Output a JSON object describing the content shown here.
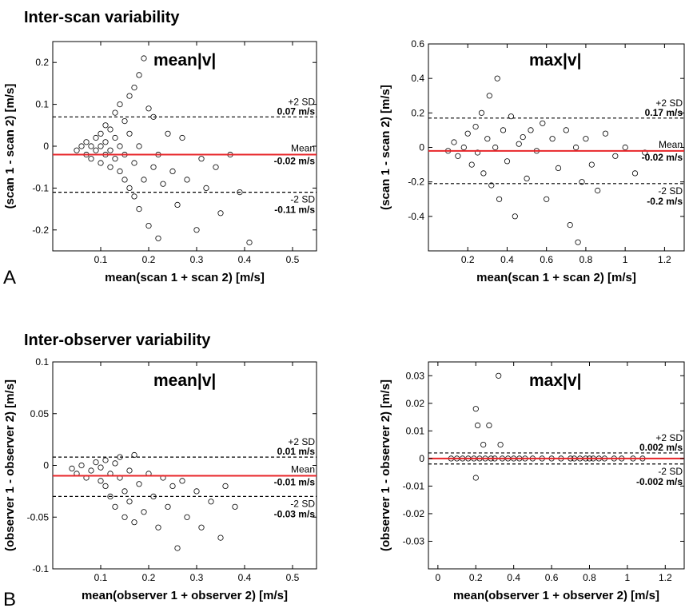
{
  "figure": {
    "section_a_title": "Inter-scan variability",
    "section_b_title": "Inter-observer variability",
    "panel_a_letter": "A",
    "panel_b_letter": "B"
  },
  "colors": {
    "mean_line": "#e8262a",
    "sd_line": "#000000",
    "marker": "#000000"
  },
  "chart_data": [
    {
      "type": "scatter",
      "title": "mean|v|",
      "xlabel": "mean(scan 1 + scan 2) [m/s]",
      "ylabel": "(scan 1 - scan 2) [m/s]",
      "xlim": [
        0,
        0.55
      ],
      "ylim": [
        -0.25,
        0.25
      ],
      "xticks": [
        0.1,
        0.2,
        0.3,
        0.4,
        0.5
      ],
      "xtick_labels": [
        "0.1",
        "0.2",
        "0.3",
        "0.4",
        "0.5"
      ],
      "yticks": [
        -0.2,
        -0.1,
        0,
        0.1,
        0.2
      ],
      "ytick_labels": [
        "-0.2",
        "-0.1",
        "0",
        "0.1",
        "0.2"
      ],
      "mean": -0.02,
      "upper": 0.07,
      "lower": -0.11,
      "mean_label": "Mean",
      "mean_value_label": "-0.02 m/s",
      "upper_label": "+2 SD",
      "upper_value_label": "0.07 m/s",
      "lower_label": "-2 SD",
      "lower_value_label": "-0.11 m/s",
      "points": [
        [
          0.05,
          -0.01
        ],
        [
          0.06,
          0.0
        ],
        [
          0.07,
          -0.02
        ],
        [
          0.07,
          0.01
        ],
        [
          0.08,
          -0.03
        ],
        [
          0.08,
          0.0
        ],
        [
          0.09,
          -0.01
        ],
        [
          0.09,
          0.02
        ],
        [
          0.1,
          -0.04
        ],
        [
          0.1,
          0.0
        ],
        [
          0.1,
          0.03
        ],
        [
          0.11,
          -0.02
        ],
        [
          0.11,
          0.01
        ],
        [
          0.11,
          0.05
        ],
        [
          0.12,
          -0.05
        ],
        [
          0.12,
          -0.01
        ],
        [
          0.12,
          0.04
        ],
        [
          0.13,
          -0.03
        ],
        [
          0.13,
          0.02
        ],
        [
          0.13,
          0.08
        ],
        [
          0.14,
          -0.06
        ],
        [
          0.14,
          0.0
        ],
        [
          0.14,
          0.1
        ],
        [
          0.15,
          -0.08
        ],
        [
          0.15,
          -0.02
        ],
        [
          0.15,
          0.06
        ],
        [
          0.16,
          -0.1
        ],
        [
          0.16,
          0.03
        ],
        [
          0.16,
          0.12
        ],
        [
          0.17,
          -0.12
        ],
        [
          0.17,
          -0.04
        ],
        [
          0.17,
          0.14
        ],
        [
          0.18,
          -0.15
        ],
        [
          0.18,
          0.0
        ],
        [
          0.18,
          0.17
        ],
        [
          0.19,
          -0.08
        ],
        [
          0.19,
          0.21
        ],
        [
          0.2,
          -0.19
        ],
        [
          0.2,
          0.09
        ],
        [
          0.21,
          -0.05
        ],
        [
          0.21,
          0.07
        ],
        [
          0.22,
          -0.22
        ],
        [
          0.22,
          -0.02
        ],
        [
          0.23,
          -0.09
        ],
        [
          0.24,
          0.03
        ],
        [
          0.25,
          -0.06
        ],
        [
          0.26,
          -0.14
        ],
        [
          0.27,
          0.02
        ],
        [
          0.28,
          -0.08
        ],
        [
          0.3,
          -0.2
        ],
        [
          0.31,
          -0.03
        ],
        [
          0.32,
          -0.1
        ],
        [
          0.34,
          -0.05
        ],
        [
          0.35,
          -0.16
        ],
        [
          0.37,
          -0.02
        ],
        [
          0.39,
          -0.11
        ],
        [
          0.41,
          -0.23
        ]
      ]
    },
    {
      "type": "scatter",
      "title": "max|v|",
      "xlabel": "mean(scan 1 + scan 2) [m/s]",
      "ylabel": "(scan 1 - scan 2) [m/s]",
      "xlim": [
        0,
        1.3
      ],
      "ylim": [
        -0.6,
        0.6
      ],
      "xticks": [
        0.2,
        0.4,
        0.6,
        0.8,
        1.0,
        1.2
      ],
      "xtick_labels": [
        "0.2",
        "0.4",
        "0.6",
        "0.8",
        "1",
        "1.2"
      ],
      "yticks": [
        -0.4,
        -0.2,
        0,
        0.2,
        0.4,
        0.6
      ],
      "ytick_labels": [
        "-0.4",
        "-0.2",
        "0",
        "0.2",
        "0.4",
        "0.6"
      ],
      "mean": -0.02,
      "upper": 0.17,
      "lower": -0.21,
      "mean_label": "Mean",
      "mean_value_label": "-0.02 m/s",
      "upper_label": "+2 SD",
      "upper_value_label": "0.17 m/s",
      "lower_label": "-2 SD",
      "lower_value_label": "-0.2 m/s",
      "points": [
        [
          0.1,
          -0.02
        ],
        [
          0.13,
          0.03
        ],
        [
          0.15,
          -0.05
        ],
        [
          0.18,
          0.0
        ],
        [
          0.2,
          0.08
        ],
        [
          0.22,
          -0.1
        ],
        [
          0.24,
          0.12
        ],
        [
          0.25,
          -0.03
        ],
        [
          0.27,
          0.2
        ],
        [
          0.28,
          -0.15
        ],
        [
          0.3,
          0.05
        ],
        [
          0.31,
          0.3
        ],
        [
          0.32,
          -0.22
        ],
        [
          0.34,
          0.0
        ],
        [
          0.35,
          0.4
        ],
        [
          0.36,
          -0.3
        ],
        [
          0.38,
          0.1
        ],
        [
          0.4,
          -0.08
        ],
        [
          0.42,
          0.18
        ],
        [
          0.44,
          -0.4
        ],
        [
          0.46,
          0.02
        ],
        [
          0.48,
          0.06
        ],
        [
          0.5,
          -0.18
        ],
        [
          0.52,
          0.1
        ],
        [
          0.55,
          -0.02
        ],
        [
          0.58,
          0.14
        ],
        [
          0.6,
          -0.3
        ],
        [
          0.63,
          0.05
        ],
        [
          0.66,
          -0.12
        ],
        [
          0.7,
          0.1
        ],
        [
          0.72,
          -0.45
        ],
        [
          0.75,
          0.0
        ],
        [
          0.76,
          -0.55
        ],
        [
          0.78,
          -0.2
        ],
        [
          0.8,
          0.05
        ],
        [
          0.83,
          -0.1
        ],
        [
          0.86,
          -0.25
        ],
        [
          0.9,
          0.08
        ],
        [
          0.95,
          -0.05
        ],
        [
          1.0,
          0.0
        ],
        [
          1.05,
          -0.15
        ],
        [
          1.1,
          -0.03
        ]
      ]
    },
    {
      "type": "scatter",
      "title": "mean|v|",
      "xlabel": "mean(observer 1 + observer 2) [m/s]",
      "ylabel": "(observer 1 - observer 2) [m/s]",
      "xlim": [
        0,
        0.55
      ],
      "ylim": [
        -0.1,
        0.1
      ],
      "xticks": [
        0.1,
        0.2,
        0.3,
        0.4,
        0.5
      ],
      "xtick_labels": [
        "0.1",
        "0.2",
        "0.3",
        "0.4",
        "0.5"
      ],
      "yticks": [
        -0.1,
        -0.05,
        0,
        0.05,
        0.1
      ],
      "ytick_labels": [
        "-0.1",
        "-0.05",
        "0",
        "0.05",
        "0.1"
      ],
      "mean": -0.01,
      "upper": 0.008,
      "lower": -0.03,
      "mean_label": "Mean",
      "mean_value_label": "-0.01 m/s",
      "upper_label": "+2 SD",
      "upper_value_label": "0.01 m/s",
      "lower_label": "-2 SD",
      "lower_value_label": "-0.03 m/s",
      "points": [
        [
          0.04,
          -0.003
        ],
        [
          0.05,
          -0.008
        ],
        [
          0.06,
          0.0
        ],
        [
          0.07,
          -0.012
        ],
        [
          0.08,
          -0.005
        ],
        [
          0.09,
          0.003
        ],
        [
          0.1,
          -0.015
        ],
        [
          0.1,
          -0.002
        ],
        [
          0.11,
          -0.02
        ],
        [
          0.11,
          0.005
        ],
        [
          0.12,
          -0.008
        ],
        [
          0.12,
          -0.03
        ],
        [
          0.13,
          0.002
        ],
        [
          0.13,
          -0.04
        ],
        [
          0.14,
          -0.012
        ],
        [
          0.14,
          0.008
        ],
        [
          0.15,
          -0.025
        ],
        [
          0.15,
          -0.05
        ],
        [
          0.16,
          -0.005
        ],
        [
          0.16,
          -0.035
        ],
        [
          0.17,
          0.01
        ],
        [
          0.17,
          -0.055
        ],
        [
          0.18,
          -0.018
        ],
        [
          0.19,
          -0.045
        ],
        [
          0.2,
          -0.008
        ],
        [
          0.21,
          -0.03
        ],
        [
          0.22,
          -0.06
        ],
        [
          0.23,
          -0.012
        ],
        [
          0.24,
          -0.04
        ],
        [
          0.25,
          -0.02
        ],
        [
          0.26,
          -0.08
        ],
        [
          0.27,
          -0.015
        ],
        [
          0.28,
          -0.05
        ],
        [
          0.3,
          -0.025
        ],
        [
          0.31,
          -0.06
        ],
        [
          0.33,
          -0.035
        ],
        [
          0.35,
          -0.07
        ],
        [
          0.36,
          -0.02
        ],
        [
          0.38,
          -0.04
        ]
      ]
    },
    {
      "type": "scatter",
      "title": "max|v|",
      "xlabel": "mean(observer 1 + observer 2) [m/s]",
      "ylabel": "(observer 1 - observer 2) [m/s]",
      "xlim": [
        -0.05,
        1.3
      ],
      "ylim": [
        -0.04,
        0.035
      ],
      "xticks": [
        0,
        0.2,
        0.4,
        0.6,
        0.8,
        1.0,
        1.2
      ],
      "xtick_labels": [
        "0",
        "0.2",
        "0.4",
        "0.6",
        "0.8",
        "1",
        "1.2"
      ],
      "yticks": [
        -0.03,
        -0.02,
        -0.01,
        0,
        0.01,
        0.02,
        0.03
      ],
      "ytick_labels": [
        "-0.03",
        "-0.02",
        "-0.01",
        "0",
        "0.01",
        "0.02",
        "0.03"
      ],
      "mean": 0.0,
      "upper": 0.002,
      "lower": -0.002,
      "mean_label": "",
      "mean_value_label": "",
      "upper_label": "+2 SD",
      "upper_value_label": "0.002 m/s",
      "lower_label": "-2 SD",
      "lower_value_label": "-0.002 m/s",
      "points": [
        [
          0.07,
          0.0
        ],
        [
          0.1,
          0.0
        ],
        [
          0.13,
          0.0
        ],
        [
          0.16,
          0.0
        ],
        [
          0.19,
          0.0
        ],
        [
          0.2,
          0.018
        ],
        [
          0.21,
          0.012
        ],
        [
          0.2,
          -0.007
        ],
        [
          0.22,
          0.0
        ],
        [
          0.24,
          0.005
        ],
        [
          0.25,
          0.0
        ],
        [
          0.27,
          0.012
        ],
        [
          0.28,
          0.0
        ],
        [
          0.3,
          0.0
        ],
        [
          0.32,
          0.03
        ],
        [
          0.33,
          0.005
        ],
        [
          0.34,
          0.0
        ],
        [
          0.37,
          0.0
        ],
        [
          0.4,
          0.0
        ],
        [
          0.43,
          0.0
        ],
        [
          0.46,
          0.0
        ],
        [
          0.5,
          0.0
        ],
        [
          0.55,
          0.0
        ],
        [
          0.6,
          0.0
        ],
        [
          0.65,
          0.0
        ],
        [
          0.7,
          0.0
        ],
        [
          0.72,
          0.0
        ],
        [
          0.75,
          0.0
        ],
        [
          0.78,
          0.0
        ],
        [
          0.8,
          0.0
        ],
        [
          0.82,
          0.0
        ],
        [
          0.85,
          0.0
        ],
        [
          0.88,
          0.0
        ],
        [
          0.93,
          0.0
        ],
        [
          0.97,
          0.0
        ],
        [
          1.03,
          0.0
        ],
        [
          1.08,
          0.0
        ]
      ]
    }
  ]
}
